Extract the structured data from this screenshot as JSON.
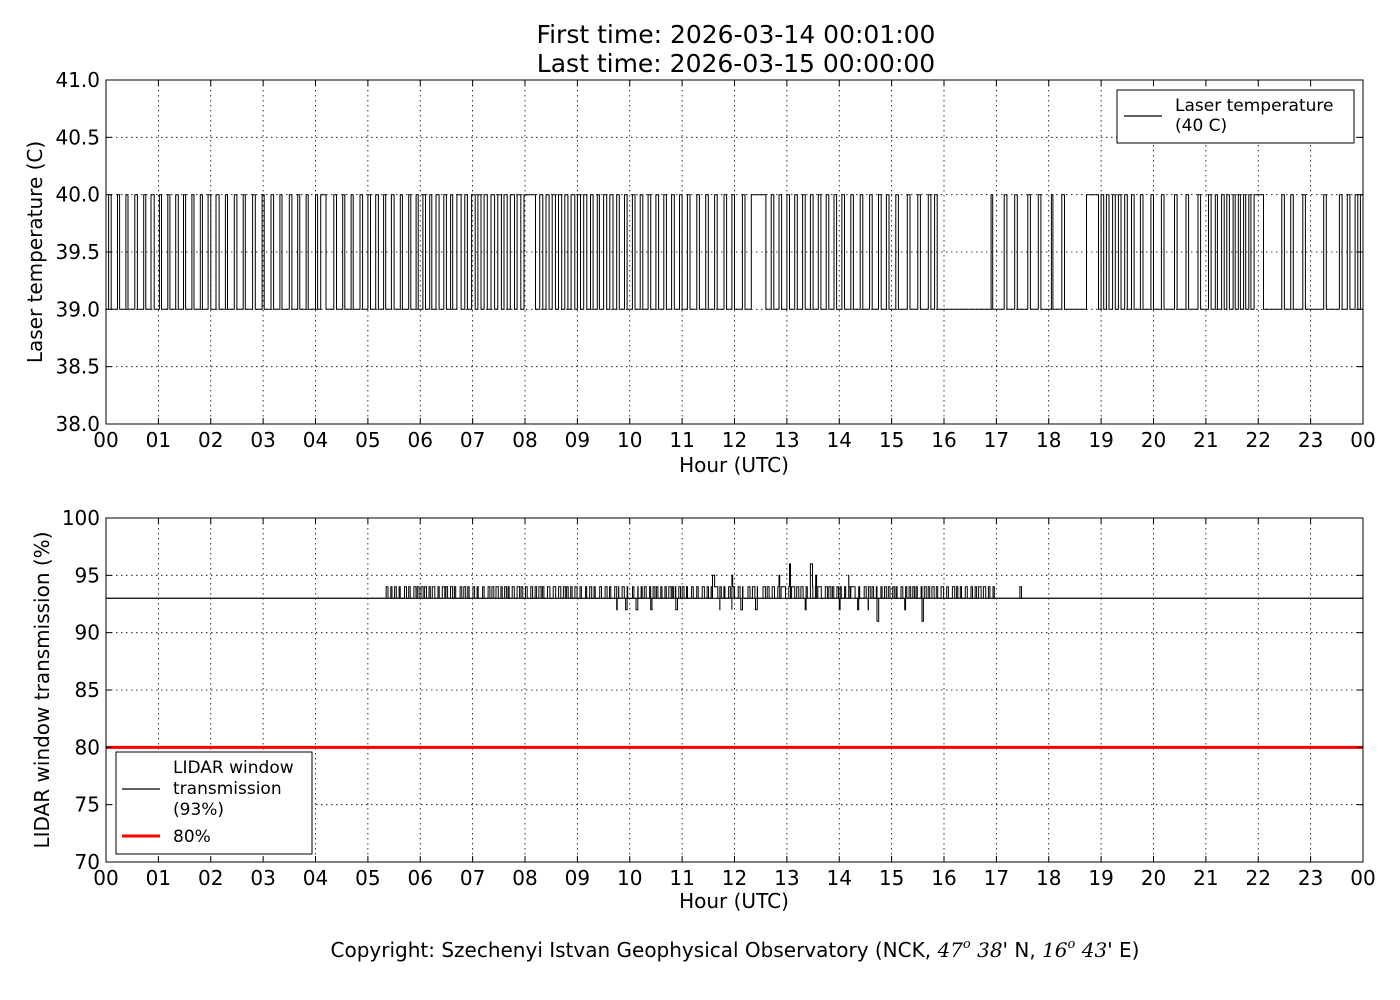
{
  "title_lines": [
    "First time: 2026-03-14 00:01:00",
    "Last time: 2026-03-15 00:00:00"
  ],
  "copyright": {
    "prefix": "Copyright: Szechenyi Istvan Geophysical Observatory (NCK, ",
    "lat_deg": "47",
    "lat_min": " 38",
    "lat_suffix": "' N, ",
    "lon_deg": "16",
    "lon_min": " 43",
    "lon_suffix": "' E)",
    "degree_mark": "o"
  },
  "chart_data": [
    {
      "type": "line",
      "ylabel": "Laser temperature (C)",
      "xlabel": "Hour (UTC)",
      "xlim": [
        0,
        24
      ],
      "ylim": [
        38.0,
        41.0
      ],
      "x_ticks": [
        "00",
        "01",
        "02",
        "03",
        "04",
        "05",
        "06",
        "07",
        "08",
        "09",
        "10",
        "11",
        "12",
        "13",
        "14",
        "15",
        "16",
        "17",
        "18",
        "19",
        "20",
        "21",
        "22",
        "23",
        "00"
      ],
      "y_ticks": [
        "38.0",
        "38.5",
        "39.0",
        "39.5",
        "40.0",
        "40.5",
        "41.0"
      ],
      "grid": true,
      "legend_position": "top-right",
      "series": [
        {
          "name": "Laser temperature\n(40 C)",
          "color": "#000000",
          "levels": [
            39.0,
            40.0
          ],
          "high_intervals": [
            [
              0.05,
              0.1
            ],
            [
              0.22,
              0.26
            ],
            [
              0.38,
              0.42
            ],
            [
              0.55,
              0.6
            ],
            [
              0.72,
              0.76
            ],
            [
              0.86,
              0.92
            ],
            [
              1.02,
              1.06
            ],
            [
              1.18,
              1.22
            ],
            [
              1.33,
              1.38
            ],
            [
              1.48,
              1.52
            ],
            [
              1.64,
              1.68
            ],
            [
              1.8,
              1.84
            ],
            [
              1.95,
              2.0
            ],
            [
              2.1,
              2.16
            ],
            [
              2.28,
              2.32
            ],
            [
              2.45,
              2.5
            ],
            [
              2.62,
              2.66
            ],
            [
              2.8,
              2.85
            ],
            [
              2.98,
              3.02
            ],
            [
              3.15,
              3.2
            ],
            [
              3.32,
              3.36
            ],
            [
              3.5,
              3.55
            ],
            [
              3.66,
              3.7
            ],
            [
              3.82,
              3.86
            ],
            [
              4.0,
              4.04
            ],
            [
              4.1,
              4.2
            ],
            [
              4.35,
              4.4
            ],
            [
              4.52,
              4.56
            ],
            [
              4.68,
              4.72
            ],
            [
              4.85,
              4.9
            ],
            [
              5.0,
              5.05
            ],
            [
              5.15,
              5.2
            ],
            [
              5.3,
              5.34
            ],
            [
              5.45,
              5.5
            ],
            [
              5.62,
              5.66
            ],
            [
              5.78,
              5.82
            ],
            [
              5.92,
              5.96
            ],
            [
              6.05,
              6.1
            ],
            [
              6.18,
              6.22
            ],
            [
              6.3,
              6.36
            ],
            [
              6.45,
              6.5
            ],
            [
              6.58,
              6.62
            ],
            [
              6.7,
              6.78
            ],
            [
              6.85,
              6.9
            ],
            [
              6.98,
              7.05
            ],
            [
              7.1,
              7.16
            ],
            [
              7.22,
              7.28
            ],
            [
              7.35,
              7.42
            ],
            [
              7.48,
              7.55
            ],
            [
              7.6,
              7.66
            ],
            [
              7.72,
              7.8
            ],
            [
              7.85,
              7.92
            ],
            [
              7.98,
              8.2
            ],
            [
              8.28,
              8.34
            ],
            [
              8.4,
              8.46
            ],
            [
              8.52,
              8.58
            ],
            [
              8.64,
              8.7
            ],
            [
              8.76,
              8.82
            ],
            [
              8.88,
              8.95
            ],
            [
              9.0,
              9.06
            ],
            [
              9.12,
              9.18
            ],
            [
              9.25,
              9.3
            ],
            [
              9.38,
              9.42
            ],
            [
              9.5,
              9.56
            ],
            [
              9.62,
              9.68
            ],
            [
              9.75,
              9.8
            ],
            [
              9.9,
              9.95
            ],
            [
              10.05,
              10.1
            ],
            [
              10.2,
              10.25
            ],
            [
              10.35,
              10.4
            ],
            [
              10.5,
              10.55
            ],
            [
              10.65,
              10.7
            ],
            [
              10.8,
              10.85
            ],
            [
              10.95,
              11.0
            ],
            [
              11.1,
              11.15
            ],
            [
              11.28,
              11.33
            ],
            [
              11.45,
              11.5
            ],
            [
              11.62,
              11.67
            ],
            [
              11.8,
              11.85
            ],
            [
              11.95,
              12.0
            ],
            [
              12.15,
              12.2
            ],
            [
              12.32,
              12.6
            ],
            [
              12.7,
              12.75
            ],
            [
              12.85,
              12.9
            ],
            [
              13.0,
              13.05
            ],
            [
              13.15,
              13.2
            ],
            [
              13.3,
              13.35
            ],
            [
              13.45,
              13.5
            ],
            [
              13.6,
              13.65
            ],
            [
              13.75,
              13.8
            ],
            [
              13.9,
              13.95
            ],
            [
              14.05,
              14.1
            ],
            [
              14.22,
              14.27
            ],
            [
              14.4,
              14.45
            ],
            [
              14.58,
              14.63
            ],
            [
              14.75,
              14.8
            ],
            [
              14.9,
              14.95
            ],
            [
              15.08,
              15.13
            ],
            [
              15.3,
              15.35
            ],
            [
              15.5,
              15.55
            ],
            [
              15.7,
              15.75
            ],
            [
              15.82,
              15.87
            ],
            [
              16.9,
              16.93
            ],
            [
              17.15,
              17.2
            ],
            [
              17.35,
              17.4
            ],
            [
              17.6,
              17.65
            ],
            [
              17.8,
              17.85
            ],
            [
              18.05,
              18.08
            ],
            [
              18.25,
              18.3
            ],
            [
              18.72,
              18.95
            ],
            [
              19.0,
              19.05
            ],
            [
              19.1,
              19.15
            ],
            [
              19.22,
              19.27
            ],
            [
              19.33,
              19.38
            ],
            [
              19.45,
              19.5
            ],
            [
              19.58,
              19.63
            ],
            [
              19.75,
              19.8
            ],
            [
              19.95,
              20.0
            ],
            [
              20.15,
              20.2
            ],
            [
              20.4,
              20.45
            ],
            [
              20.62,
              20.67
            ],
            [
              20.85,
              20.9
            ],
            [
              21.05,
              21.1
            ],
            [
              21.18,
              21.22
            ],
            [
              21.3,
              21.35
            ],
            [
              21.4,
              21.45
            ],
            [
              21.52,
              21.56
            ],
            [
              21.62,
              21.66
            ],
            [
              21.72,
              21.76
            ],
            [
              21.82,
              21.86
            ],
            [
              21.92,
              22.1
            ],
            [
              22.45,
              22.5
            ],
            [
              22.62,
              22.67
            ],
            [
              22.85,
              22.9
            ],
            [
              23.25,
              23.3
            ],
            [
              23.55,
              23.6
            ],
            [
              23.7,
              23.75
            ],
            [
              23.85,
              23.9
            ],
            [
              23.95,
              24.0
            ]
          ]
        }
      ]
    },
    {
      "type": "line",
      "ylabel": "LIDAR window transmission (%)",
      "xlabel": "Hour (UTC)",
      "xlim": [
        0,
        24
      ],
      "ylim": [
        70,
        100
      ],
      "x_ticks": [
        "00",
        "01",
        "02",
        "03",
        "04",
        "05",
        "06",
        "07",
        "08",
        "09",
        "10",
        "11",
        "12",
        "13",
        "14",
        "15",
        "16",
        "17",
        "18",
        "19",
        "20",
        "21",
        "22",
        "23",
        "00"
      ],
      "y_ticks": [
        "70",
        "75",
        "80",
        "85",
        "90",
        "95",
        "100"
      ],
      "grid": true,
      "legend_position": "bottom-left",
      "series": [
        {
          "name": "LIDAR window\ntransmission\n(93%)",
          "color": "#000000",
          "baseline": 93,
          "active_range": [
            5.35,
            17.0
          ],
          "extra_spikes": [
            [
              17.45,
              94
            ]
          ],
          "dips": [
            [
              9.75,
              92
            ],
            [
              9.92,
              92
            ],
            [
              10.12,
              92
            ],
            [
              10.4,
              92
            ],
            [
              10.88,
              92
            ],
            [
              11.72,
              92
            ],
            [
              11.95,
              92
            ],
            [
              12.12,
              92
            ],
            [
              12.4,
              92
            ],
            [
              13.35,
              92
            ],
            [
              14.0,
              92
            ],
            [
              14.35,
              92
            ],
            [
              14.55,
              92
            ],
            [
              14.72,
              91
            ],
            [
              15.25,
              92
            ],
            [
              15.58,
              91
            ]
          ],
          "peaks": [
            [
              11.58,
              95
            ],
            [
              11.95,
              95
            ],
            [
              12.85,
              95
            ],
            [
              13.05,
              96
            ],
            [
              13.45,
              96
            ],
            [
              13.55,
              95
            ],
            [
              14.18,
              95
            ]
          ]
        },
        {
          "name": "80%",
          "color": "#ff0000",
          "constant": 80
        }
      ]
    }
  ]
}
